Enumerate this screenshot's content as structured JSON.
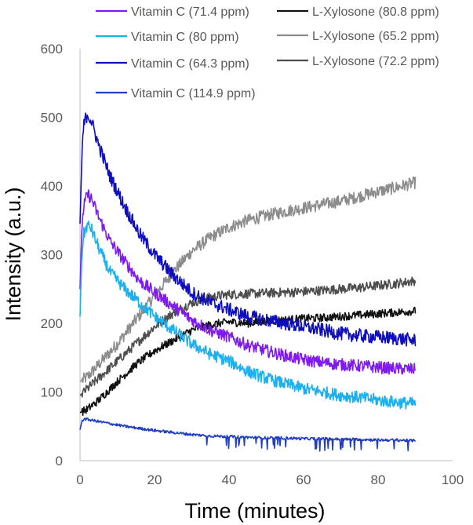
{
  "chart_data": {
    "type": "line",
    "title": "",
    "xlabel": "Time (minutes)",
    "ylabel": "Intensity (a.u.)",
    "xlim": [
      0,
      100
    ],
    "ylim": [
      0,
      600
    ],
    "xticks": [
      0,
      20,
      40,
      60,
      80,
      100
    ],
    "yticks": [
      0,
      100,
      200,
      300,
      400,
      500,
      600
    ],
    "grid": false,
    "legend_position": "top",
    "series": [
      {
        "name": "Vitamin C (71.4 ppm)",
        "color": "#7F1AF0",
        "x": [
          0,
          0.5,
          1,
          2,
          3,
          5,
          8,
          12,
          16,
          20,
          25,
          30,
          35,
          40,
          45,
          50,
          55,
          60,
          65,
          70,
          75,
          80,
          85,
          90
        ],
        "y": [
          250,
          340,
          370,
          388,
          382,
          355,
          320,
          290,
          262,
          245,
          225,
          205,
          190,
          180,
          168,
          160,
          153,
          147,
          143,
          140,
          138,
          136,
          134,
          133
        ]
      },
      {
        "name": "Vitamin C (80 ppm)",
        "color": "#1DB0EE",
        "x": [
          0,
          0.5,
          1,
          2,
          3,
          5,
          8,
          12,
          16,
          20,
          25,
          30,
          35,
          40,
          45,
          50,
          55,
          60,
          65,
          70,
          75,
          80,
          85,
          90
        ],
        "y": [
          210,
          300,
          330,
          343,
          338,
          310,
          275,
          250,
          230,
          210,
          190,
          170,
          155,
          145,
          130,
          120,
          112,
          105,
          100,
          95,
          92,
          88,
          85,
          83
        ]
      },
      {
        "name": "Vitamin C (64.3 ppm)",
        "color": "#0E0EBE",
        "x": [
          0,
          0.5,
          1,
          2,
          3,
          5,
          8,
          12,
          16,
          20,
          25,
          30,
          35,
          40,
          45,
          50,
          55,
          60,
          65,
          70,
          75,
          80,
          85,
          90
        ],
        "y": [
          345,
          440,
          490,
          505,
          495,
          460,
          415,
          370,
          330,
          300,
          270,
          245,
          230,
          220,
          210,
          205,
          200,
          195,
          190,
          185,
          182,
          180,
          178,
          175
        ]
      },
      {
        "name": "Vitamin C (114.9 ppm)",
        "color": "#1F3EC4",
        "x": [
          0,
          0.5,
          1,
          2,
          4,
          8,
          12,
          16,
          20,
          25,
          30,
          35,
          40,
          45,
          50,
          55,
          60,
          65,
          70,
          75,
          80,
          85,
          90
        ],
        "y": [
          45,
          57,
          61,
          60,
          58,
          54,
          50,
          47,
          44,
          41,
          38,
          36,
          35,
          34,
          33,
          33,
          32,
          32,
          31,
          31,
          30,
          30,
          29
        ]
      },
      {
        "name": "L-Xylosone (80.8 ppm)",
        "color": "#111111",
        "x": [
          0,
          2,
          5,
          10,
          15,
          20,
          25,
          30,
          35,
          40,
          45,
          50,
          55,
          60,
          65,
          70,
          75,
          80,
          85,
          90
        ],
        "y": [
          70,
          75,
          88,
          115,
          140,
          160,
          175,
          190,
          198,
          202,
          200,
          203,
          205,
          207,
          208,
          210,
          212,
          214,
          216,
          218
        ]
      },
      {
        "name": "L-Xylosone  (65.2 ppm)",
        "color": "#8C8C8C",
        "x": [
          0,
          2,
          5,
          10,
          15,
          20,
          25,
          30,
          35,
          40,
          45,
          50,
          55,
          60,
          65,
          70,
          75,
          80,
          85,
          90
        ],
        "y": [
          115,
          122,
          140,
          170,
          205,
          240,
          275,
          305,
          325,
          340,
          350,
          357,
          363,
          368,
          373,
          378,
          385,
          392,
          398,
          405
        ]
      },
      {
        "name": "L-Xylosone  (72.2 ppm)",
        "color": "#4D4D4D",
        "x": [
          0,
          2,
          5,
          10,
          15,
          20,
          25,
          30,
          35,
          40,
          45,
          50,
          55,
          60,
          65,
          70,
          75,
          80,
          85,
          90
        ],
        "y": [
          95,
          105,
          120,
          145,
          170,
          195,
          215,
          230,
          238,
          242,
          243,
          244,
          245,
          246,
          248,
          250,
          252,
          255,
          258,
          262
        ]
      }
    ]
  }
}
